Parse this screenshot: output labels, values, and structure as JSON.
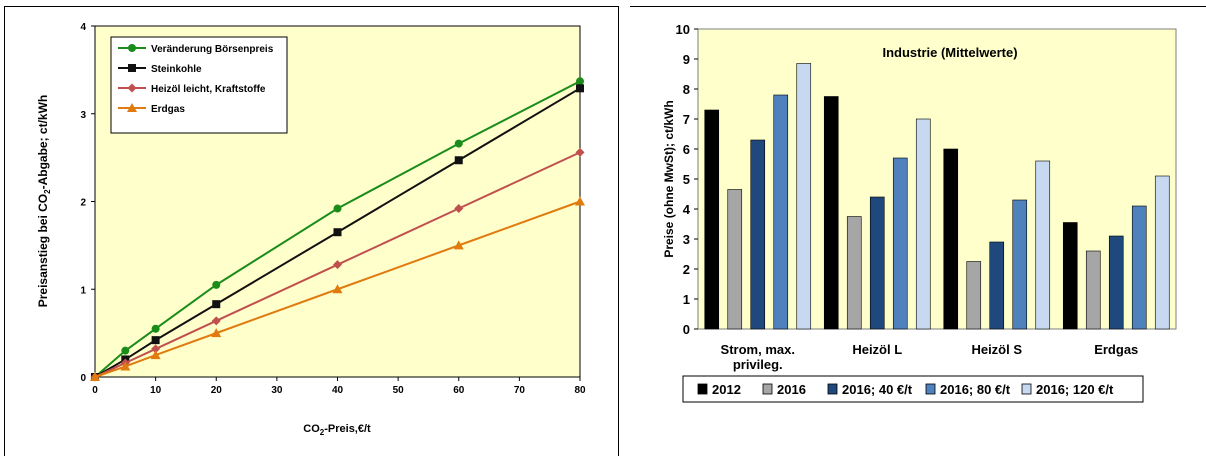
{
  "chart_data": [
    {
      "type": "line",
      "xlabel_main": "CO",
      "xlabel_sub": "2",
      "xlabel_tail": "-Preis,€/t",
      "ylabel_main": "Preisanstieg bei CO",
      "ylabel_sub": "2",
      "ylabel_tail": "-Abgabe; ct/kWh",
      "xlim": [
        0,
        80
      ],
      "ylim": [
        0,
        4
      ],
      "xticks": [
        0,
        10,
        20,
        30,
        40,
        50,
        60,
        70,
        80
      ],
      "yticks": [
        0,
        1,
        2,
        3,
        4
      ],
      "x": [
        0,
        5,
        10,
        20,
        40,
        60,
        80
      ],
      "legend_position": "top-left",
      "series": [
        {
          "name": "Veränderung Börsenpreis",
          "color": "#1a8c1a",
          "marker": "circle",
          "values": [
            0,
            0.3,
            0.55,
            1.05,
            1.92,
            2.66,
            3.37
          ]
        },
        {
          "name": "Steinkohle",
          "color": "#111111",
          "marker": "square",
          "values": [
            0,
            0.2,
            0.42,
            0.83,
            1.65,
            2.47,
            3.29
          ]
        },
        {
          "name": "Heizöl leicht, Kraftstoffe",
          "color": "#c0504d",
          "marker": "diamond",
          "values": [
            0,
            0.16,
            0.32,
            0.64,
            1.28,
            1.92,
            2.56
          ]
        },
        {
          "name": "Erdgas",
          "color": "#e07b10",
          "marker": "triangle",
          "values": [
            0,
            0.12,
            0.25,
            0.5,
            1.0,
            1.5,
            2.0
          ]
        }
      ]
    },
    {
      "type": "bar",
      "title": "Industrie (Mittelwerte)",
      "ylabel": "Preise (ohne MwSt); ct/kWh",
      "ylim": [
        0,
        10
      ],
      "yticks": [
        0,
        1,
        2,
        3,
        4,
        5,
        6,
        7,
        8,
        9,
        10
      ],
      "categories": [
        [
          "Strom, max.",
          "privileg."
        ],
        [
          "Heizöl L"
        ],
        [
          "Heizöl S"
        ],
        [
          "Erdgas"
        ]
      ],
      "legend_position": "bottom",
      "series": [
        {
          "name": "2012",
          "color": "#000000",
          "values": [
            7.3,
            7.75,
            6.0,
            3.55
          ]
        },
        {
          "name": "2016",
          "color": "#a6a6a6",
          "values": [
            4.65,
            3.75,
            2.25,
            2.6
          ]
        },
        {
          "name": "2016; 40 €/t",
          "color": "#1f497d",
          "values": [
            6.3,
            4.4,
            2.9,
            3.1
          ]
        },
        {
          "name": "2016; 80 €/t",
          "color": "#4f81bd",
          "values": [
            7.8,
            5.7,
            4.3,
            4.1
          ]
        },
        {
          "name": "2016; 120 €/t",
          "color": "#c6d9f1",
          "values": [
            8.85,
            7.0,
            5.6,
            5.1
          ]
        }
      ]
    }
  ]
}
